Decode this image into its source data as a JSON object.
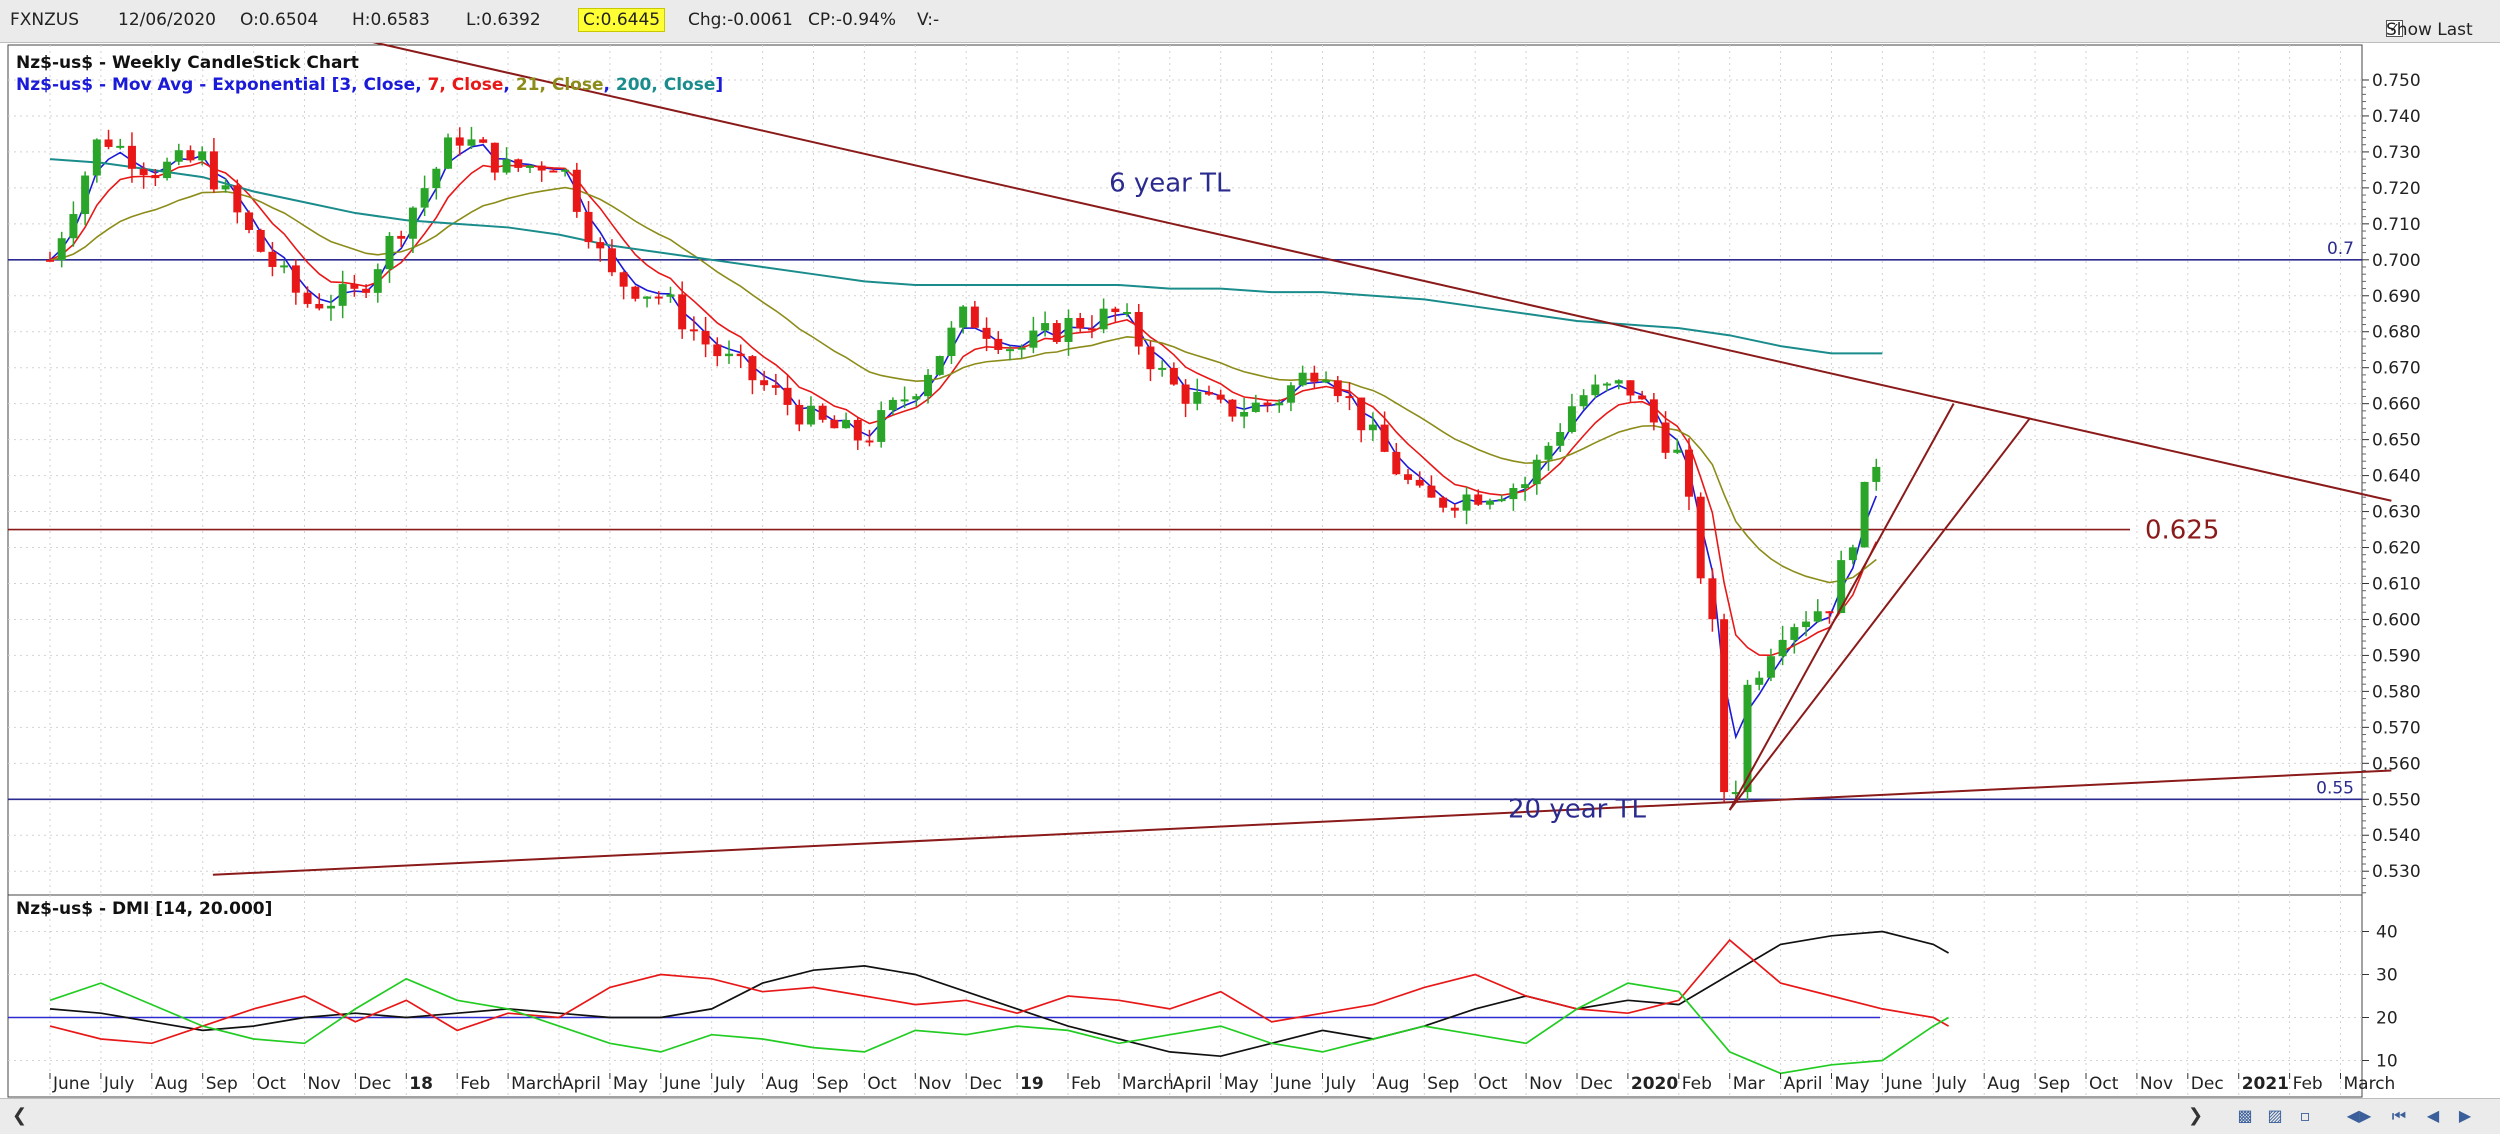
{
  "header": {
    "symbol": "FXNZUS",
    "date": "12/06/2020",
    "open": "O:0.6504",
    "high": "H:0.6583",
    "low": "L:0.6392",
    "close": "C:0.6445",
    "change": "Chg:-0.0061",
    "change_pct": "CP:-0.94%",
    "volume": "V:-",
    "show_last_label": "Show Last",
    "show_last_checked": true
  },
  "colors": {
    "candle_up": "#2aa52a",
    "candle_down": "#e81818",
    "ema3": "#1a1ad8",
    "ema7": "#e81818",
    "ema21": "#8c8c1a",
    "ema200": "#1a8c8c",
    "trendline": "#8b1a1a",
    "hline_blue": "#2b2b8f",
    "hline_brown": "#8b1a1a",
    "plus_di": "#e81818",
    "minus_di": "#22cc22",
    "adx": "#111111"
  },
  "chart_data": [
    {
      "type": "candlestick",
      "title": "Nz$-us$ - Weekly CandleStick Chart",
      "indicator_label": {
        "prefix": "Nz$-us$ - Mov Avg - Exponential [",
        "parts": [
          {
            "text": "3, Close",
            "color": "ema3"
          },
          {
            "text": "7, Close",
            "color": "ema7"
          },
          {
            "text": "21, Close",
            "color": "ema21"
          },
          {
            "text": "200, Close",
            "color": "ema200"
          }
        ],
        "suffix": "]"
      },
      "y_ticks": [
        "0.750",
        "0.740",
        "0.730",
        "0.720",
        "0.710",
        "0.700",
        "0.690",
        "0.680",
        "0.670",
        "0.660",
        "0.650",
        "0.640",
        "0.630",
        "0.620",
        "0.610",
        "0.600",
        "0.590",
        "0.580",
        "0.570",
        "0.560",
        "0.550",
        "0.540",
        "0.530"
      ],
      "ylim": [
        0.527,
        0.755
      ],
      "x_labels": [
        "June",
        "July",
        "Aug",
        "Sep",
        "Oct",
        "Nov",
        "Dec",
        "18",
        "Feb",
        "March",
        "April",
        "May",
        "June",
        "July",
        "Aug",
        "Sep",
        "Oct",
        "Nov",
        "Dec",
        "19",
        "Feb",
        "March",
        "April",
        "May",
        "June",
        "July",
        "Aug",
        "Sep",
        "Oct",
        "Nov",
        "Dec",
        "2020",
        "Feb",
        "Mar",
        "April",
        "May",
        "June",
        "July",
        "Aug",
        "Sep",
        "Oct",
        "Nov",
        "Dec",
        "2021",
        "Feb",
        "March"
      ],
      "x_label_months": [
        0,
        1,
        2,
        3,
        4,
        5,
        6,
        7,
        8,
        9,
        10,
        11,
        12,
        13,
        14,
        15,
        16,
        17,
        18,
        19,
        20,
        21,
        22,
        23,
        24,
        25,
        26,
        27,
        28,
        29,
        30,
        31,
        32,
        33,
        34,
        35,
        36,
        37,
        38,
        39,
        40,
        41,
        42,
        43,
        44,
        45
      ],
      "bold_labels": [
        "18",
        "19",
        "2020",
        "2021"
      ],
      "closes_monthly": [
        0.7,
        0.735,
        0.725,
        0.728,
        0.705,
        0.688,
        0.69,
        0.712,
        0.735,
        0.725,
        0.728,
        0.695,
        0.69,
        0.675,
        0.665,
        0.655,
        0.65,
        0.665,
        0.685,
        0.675,
        0.682,
        0.685,
        0.665,
        0.658,
        0.66,
        0.672,
        0.65,
        0.632,
        0.635,
        0.638,
        0.662,
        0.665,
        0.645,
        0.572,
        0.598,
        0.605,
        0.65
      ],
      "ema200_monthly": [
        0.728,
        0.727,
        0.725,
        0.723,
        0.719,
        0.716,
        0.713,
        0.711,
        0.71,
        0.709,
        0.707,
        0.704,
        0.702,
        0.7,
        0.698,
        0.696,
        0.694,
        0.693,
        0.693,
        0.693,
        0.693,
        0.693,
        0.692,
        0.692,
        0.691,
        0.691,
        0.69,
        0.689,
        0.687,
        0.685,
        0.683,
        0.682,
        0.681,
        0.679,
        0.676,
        0.674,
        0.674
      ],
      "horizontal_lines": [
        {
          "value": 0.7,
          "label": "0.7",
          "color": "hline_blue"
        },
        {
          "value": 0.625,
          "label": "0.625",
          "color": "hline_brown"
        },
        {
          "value": 0.55,
          "label": "0.55",
          "color": "hline_blue"
        }
      ],
      "trendlines": [
        {
          "from": [
            0.6,
            0.779
          ],
          "to": [
            46.0,
            0.633
          ],
          "label": "6 year TL",
          "label_at": [
            22.0,
            0.719
          ]
        },
        {
          "from": [
            3.2,
            0.529
          ],
          "to": [
            46.0,
            0.558
          ],
          "label": "20 year TL",
          "label_at": [
            30.0,
            0.545
          ]
        },
        {
          "from": [
            33.0,
            0.547
          ],
          "to": [
            37.4,
            0.66
          ]
        },
        {
          "from": [
            33.0,
            0.547
          ],
          "to": [
            38.9,
            0.656
          ]
        }
      ]
    },
    {
      "type": "line",
      "title": "Nz$-us$ - DMI [14, 20.000]",
      "y_ticks": [
        "40",
        "30",
        "20",
        "10"
      ],
      "ylim": [
        5,
        45
      ],
      "threshold": 20,
      "series": [
        {
          "key": "adx",
          "color": "adx",
          "months": [
            0,
            1,
            2,
            3,
            4,
            5,
            6,
            7,
            8,
            9,
            10,
            11,
            12,
            13,
            14,
            15,
            16,
            17,
            18,
            19,
            20,
            21,
            22,
            23,
            24,
            25,
            26,
            27,
            28,
            29,
            30,
            31,
            32,
            33,
            34,
            35,
            36,
            37,
            37.3
          ],
          "values": [
            22,
            21,
            19,
            17,
            18,
            20,
            21,
            20,
            21,
            22,
            21,
            20,
            20,
            22,
            28,
            31,
            32,
            30,
            26,
            22,
            18,
            15,
            12,
            11,
            14,
            17,
            15,
            18,
            22,
            25,
            22,
            24,
            23,
            30,
            37,
            39,
            40,
            37,
            35
          ]
        },
        {
          "key": "plus_di",
          "color": "plus_di",
          "months": [
            0,
            1,
            2,
            3,
            4,
            5,
            6,
            7,
            8,
            9,
            10,
            11,
            12,
            13,
            14,
            15,
            16,
            17,
            18,
            19,
            20,
            21,
            22,
            23,
            24,
            25,
            26,
            27,
            28,
            29,
            30,
            31,
            32,
            33,
            34,
            35,
            36,
            37,
            37.3
          ],
          "values": [
            18,
            15,
            14,
            18,
            22,
            25,
            19,
            24,
            17,
            21,
            20,
            27,
            30,
            29,
            26,
            27,
            25,
            23,
            24,
            21,
            25,
            24,
            22,
            26,
            19,
            21,
            23,
            27,
            30,
            25,
            22,
            21,
            24,
            38,
            28,
            25,
            22,
            20,
            18
          ]
        },
        {
          "key": "minus_di",
          "color": "minus_di",
          "months": [
            0,
            1,
            2,
            3,
            4,
            5,
            6,
            7,
            8,
            9,
            10,
            11,
            12,
            13,
            14,
            15,
            16,
            17,
            18,
            19,
            20,
            21,
            22,
            23,
            24,
            25,
            26,
            27,
            28,
            29,
            30,
            31,
            32,
            33,
            34,
            35,
            36,
            37,
            37.3
          ],
          "values": [
            24,
            28,
            23,
            18,
            15,
            14,
            22,
            29,
            24,
            22,
            18,
            14,
            12,
            16,
            15,
            13,
            12,
            17,
            16,
            18,
            17,
            14,
            16,
            18,
            14,
            12,
            15,
            18,
            16,
            14,
            22,
            28,
            26,
            12,
            7,
            9,
            10,
            18,
            20
          ]
        }
      ]
    }
  ]
}
